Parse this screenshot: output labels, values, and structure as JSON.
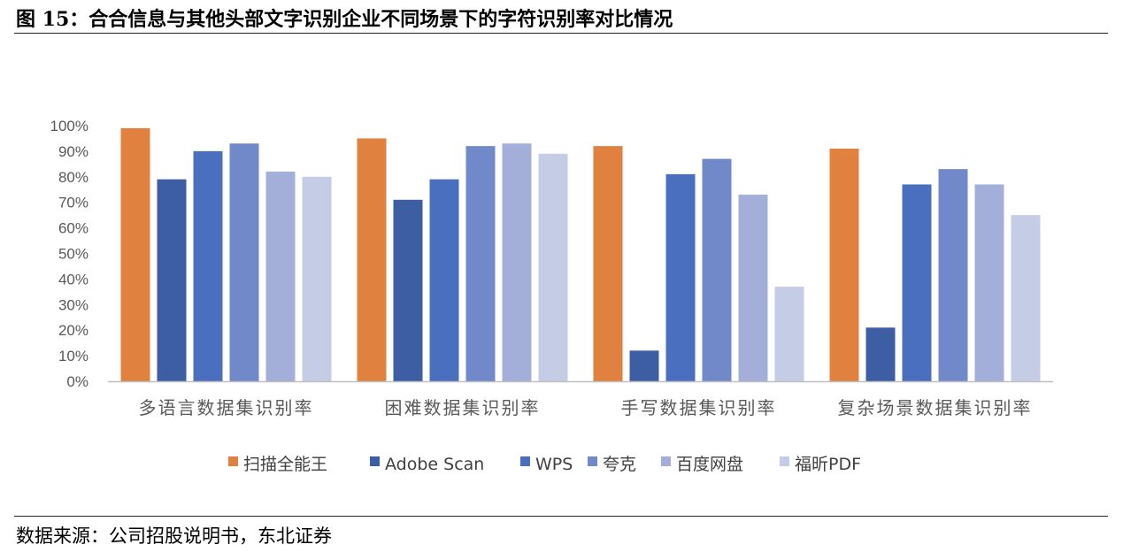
{
  "figure": {
    "title": "图 15：合合信息与其他头部文字识别企业不同场景下的字符识别率对比情况",
    "source": "数据来源：公司招股说明书，东北证券"
  },
  "chart_data": {
    "type": "bar",
    "title": "",
    "xlabel": "",
    "ylabel": "",
    "ylim": [
      0,
      100
    ],
    "y_ticks": [
      "0%",
      "10%",
      "20%",
      "30%",
      "40%",
      "50%",
      "60%",
      "70%",
      "80%",
      "90%",
      "100%"
    ],
    "categories": [
      "多语言数据集识别率",
      "困难数据集识别率",
      "手写数据集识别率",
      "复杂场景数据集识别率"
    ],
    "series": [
      {
        "name": "扫描全能王",
        "color": "#E0813F",
        "values": [
          99,
          95,
          92,
          91
        ]
      },
      {
        "name": "Adobe Scan",
        "color": "#3E5EA4",
        "values": [
          79,
          71,
          12,
          21
        ]
      },
      {
        "name": "WPS",
        "color": "#4A6FBE",
        "values": [
          90,
          79,
          81,
          77
        ]
      },
      {
        "name": "夸克",
        "color": "#7189C9",
        "values": [
          93,
          92,
          87,
          83
        ]
      },
      {
        "name": "百度网盘",
        "color": "#A3AFD8",
        "values": [
          82,
          93,
          73,
          77
        ]
      },
      {
        "name": "福昕PDF",
        "color": "#C5CCE6",
        "values": [
          80,
          89,
          37,
          65
        ]
      }
    ],
    "grid": false,
    "legend_position": "bottom"
  }
}
